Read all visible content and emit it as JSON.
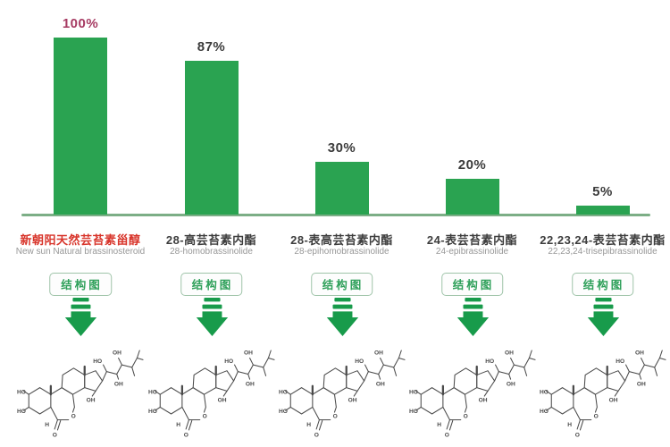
{
  "chart_data": {
    "type": "bar",
    "title": "",
    "xlabel": "",
    "ylabel": "",
    "categories": [
      "新朝阳天然芸苔素甾醇",
      "28-高芸苔素内酯",
      "28-表高芸苔素内酯",
      "24-表芸苔素内酯",
      "22,23,24-表芸苔素内酯"
    ],
    "categories_en": [
      "New sun Natural brassinosteroid",
      "28-homobrassinolide",
      "28-epihomobrassinolide",
      "24-epibrassinolide",
      "22,23,24-trisepibrassinolide"
    ],
    "values": [
      100,
      87,
      30,
      20,
      5
    ],
    "value_labels": [
      "100%",
      "87%",
      "30%",
      "20%",
      "5%"
    ],
    "value_suffix": "%",
    "ylim": [
      0,
      100
    ],
    "grid": false,
    "legend": "none",
    "orientation": "vertical",
    "bar_color": "#2aa351",
    "baseline_color": "#7cae86"
  },
  "compounds": [
    {
      "percent": "100%",
      "value": 100,
      "name_zh": "新朝阳天然芸苔素甾醇",
      "name_en": "New sun Natural brassinosteroid",
      "highlight": true
    },
    {
      "percent": "87%",
      "value": 87,
      "name_zh": "28-高芸苔素内酯",
      "name_en": "28-homobrassinolide",
      "highlight": false
    },
    {
      "percent": "30%",
      "value": 30,
      "name_zh": "28-表高芸苔素内酯",
      "name_en": "28-epihomobrassinolide",
      "highlight": false
    },
    {
      "percent": "20%",
      "value": 20,
      "name_zh": "24-表芸苔素内酯",
      "name_en": "24-epibrassinolide",
      "highlight": false
    },
    {
      "percent": "5%",
      "value": 5,
      "name_zh": "22,23,24-表芸苔素内酯",
      "name_en": "22,23,24-trisepibrassinolide",
      "highlight": false
    }
  ],
  "structure_button_label": "结构图",
  "icons": {
    "down_arrow": "down-arrow-icon",
    "structure": "chemical-structure-drawing"
  },
  "colors": {
    "bar": "#2aa351",
    "baseline": "#7cae86",
    "percent_label": "#3b3b3b",
    "highlight_percent": "#a63a62",
    "highlight_name": "#d8352b",
    "name_zh": "#3d3d3d",
    "name_en": "#979797",
    "button_text": "#2fa05a",
    "button_border": "#9fc4a9",
    "arrow": "#189b4b",
    "structure_stroke": "#4a4a4a"
  }
}
